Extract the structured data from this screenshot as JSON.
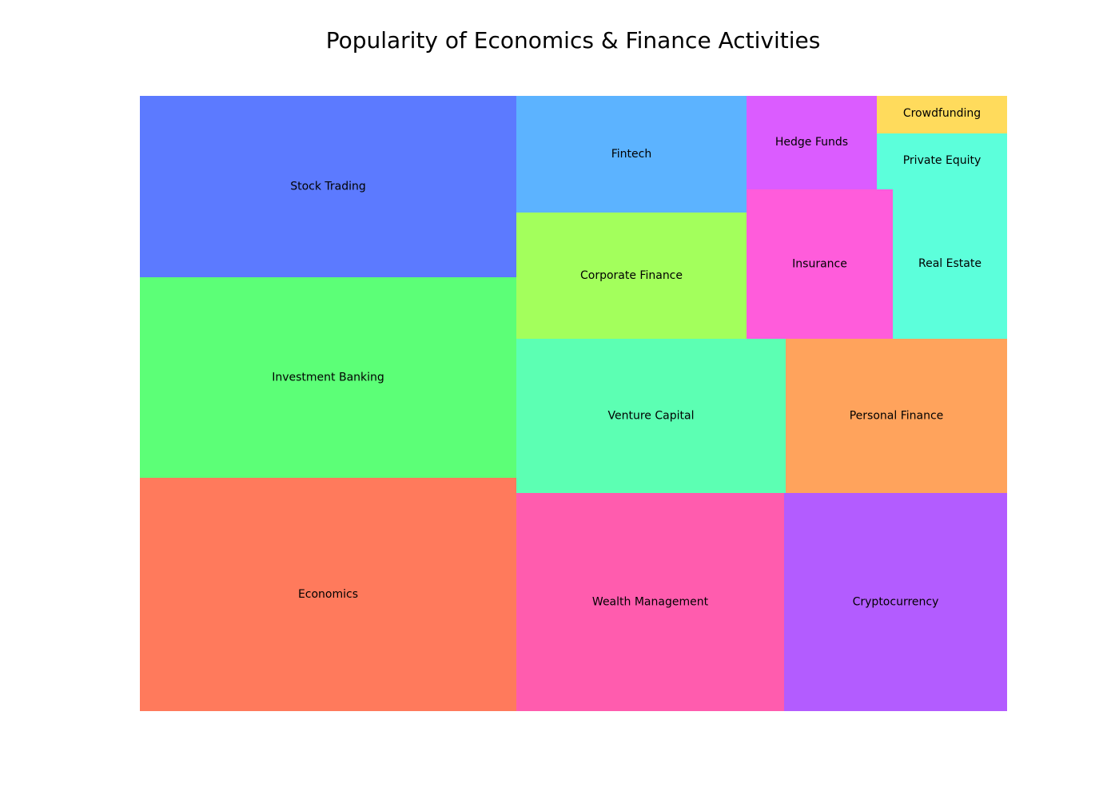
{
  "chart_data": {
    "type": "treemap",
    "title": "Popularity of Economics & Finance Activities",
    "items": [
      {
        "label": "Economics",
        "value": 8,
        "color": "#FF7A5C"
      },
      {
        "label": "Investment Banking",
        "value": 7,
        "color": "#5CFF77"
      },
      {
        "label": "Stock Trading",
        "value": 6.3,
        "color": "#5C7AFF"
      },
      {
        "label": "Wealth Management",
        "value": 5.5,
        "color": "#FF5CAE"
      },
      {
        "label": "Cryptocurrency",
        "value": 4.5,
        "color": "#B35CFF"
      },
      {
        "label": "Venture Capital",
        "value": 3.9,
        "color": "#5CFFB3"
      },
      {
        "label": "Personal Finance",
        "value": 3.2,
        "color": "#FFA35C"
      },
      {
        "label": "Fintech",
        "value": 2.5,
        "color": "#5CB3FF"
      },
      {
        "label": "Corporate Finance",
        "value": 2.7,
        "color": "#A3FF5C"
      },
      {
        "label": "Insurance",
        "value": 2.0,
        "color": "#FF5CDB"
      },
      {
        "label": "Hedge Funds",
        "value": 1.1,
        "color": "#DB5CFF"
      },
      {
        "label": "Real Estate",
        "value": 1.5,
        "color": "#5CFFDB"
      },
      {
        "label": "Private Equity",
        "value": 0.6,
        "color": "#5CFFDB"
      },
      {
        "label": "Crowdfunding",
        "value": 0.45,
        "color": "#FFDB5C"
      }
    ]
  }
}
